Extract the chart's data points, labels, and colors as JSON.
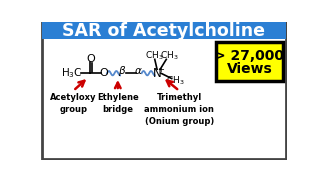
{
  "title": "SAR of Acetylcholine",
  "title_bg": "#2b7fd4",
  "title_color": "white",
  "views_line1": "> 27,000",
  "views_line2": "Views",
  "views_bg": "#ffff00",
  "views_border": "#000000",
  "label1": "Acetyloxy\ngroup",
  "label2": "Ethylene\nbridge",
  "label3": "Trimethyl\nammonium ion\n(Onium group)",
  "arrow_color": "#cc0000",
  "bg_color": "white",
  "border_color": "#444444",
  "wavy_color": "#5588cc"
}
